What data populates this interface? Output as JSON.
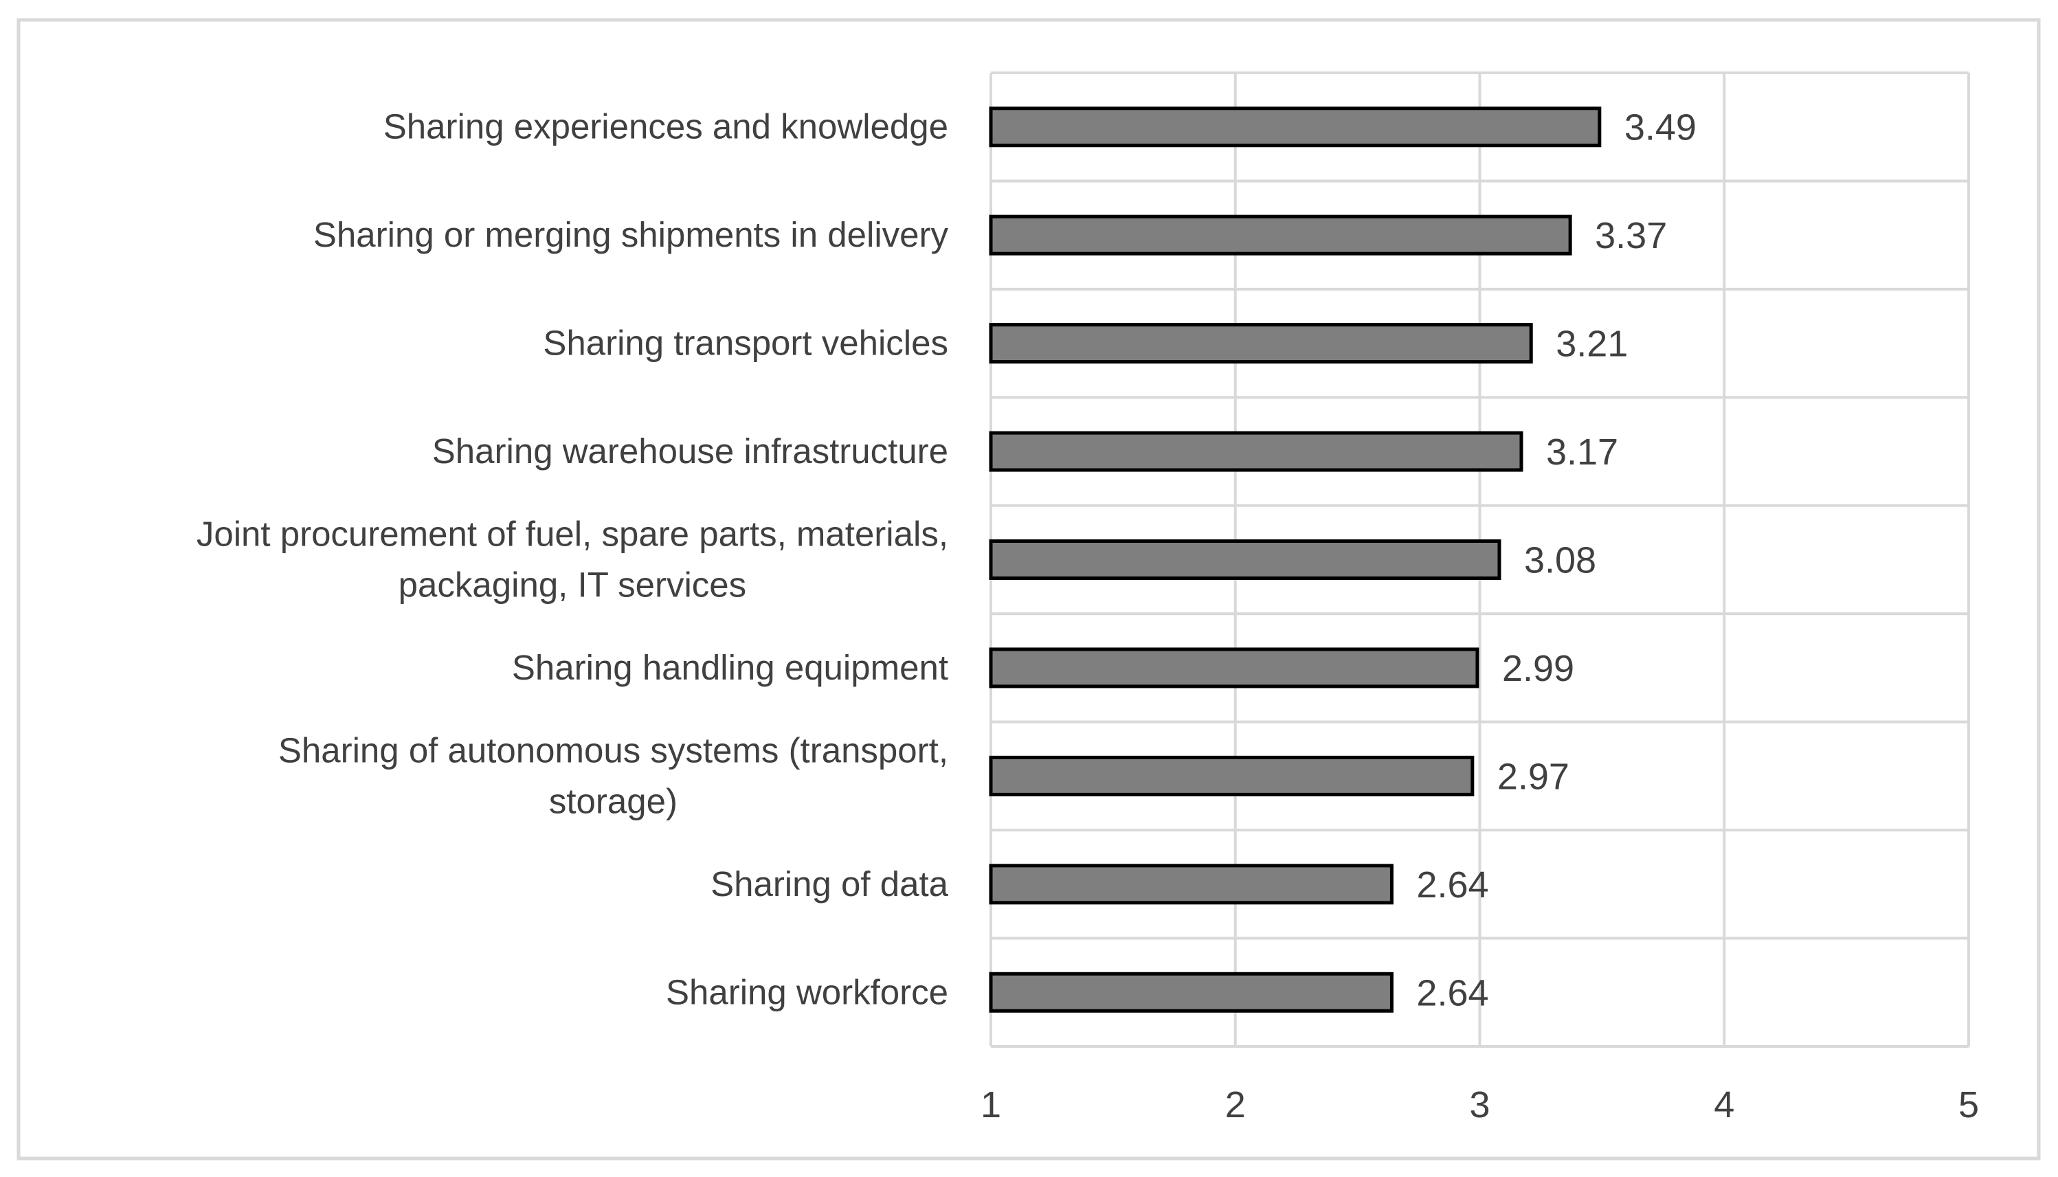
{
  "chart_data": {
    "type": "bar",
    "orientation": "horizontal",
    "categories": [
      "Sharing experiences and knowledge",
      "Sharing or merging shipments in delivery",
      "Sharing transport vehicles",
      "Sharing warehouse infrastructure",
      "Joint procurement of fuel, spare parts, materials, packaging, IT services",
      "Sharing handling equipment",
      "Sharing of autonomous systems (transport, storage)",
      "Sharing of data",
      "Sharing workforce"
    ],
    "category_lines": [
      [
        "Sharing experiences and knowledge"
      ],
      [
        "Sharing or merging shipments in delivery"
      ],
      [
        "Sharing transport vehicles"
      ],
      [
        "Sharing warehouse infrastructure"
      ],
      [
        "Joint procurement of fuel, spare parts, materials,",
        "packaging, IT services"
      ],
      [
        "Sharing handling equipment"
      ],
      [
        "Sharing of autonomous systems (transport,",
        "storage)"
      ],
      [
        "Sharing of data"
      ],
      [
        "Sharing workforce"
      ]
    ],
    "values": [
      3.49,
      3.37,
      3.21,
      3.17,
      3.08,
      2.99,
      2.97,
      2.64,
      2.64
    ],
    "data_labels": [
      "3.49",
      "3.37",
      "3.21",
      "3.17",
      "3.08",
      "2.99",
      "2.97",
      "2.64",
      "2.64"
    ],
    "xlim": [
      1,
      5
    ],
    "x_ticks": [
      "1",
      "2",
      "3",
      "4",
      "5"
    ],
    "title": "",
    "xlabel": "",
    "ylabel": "",
    "grid": true,
    "legend": "none",
    "colors": {
      "bar_fill": "#7f7f7f",
      "bar_stroke": "#000000",
      "grid": "#d9d9d9",
      "text": "#404040",
      "frame": "#d9d9d9"
    }
  }
}
